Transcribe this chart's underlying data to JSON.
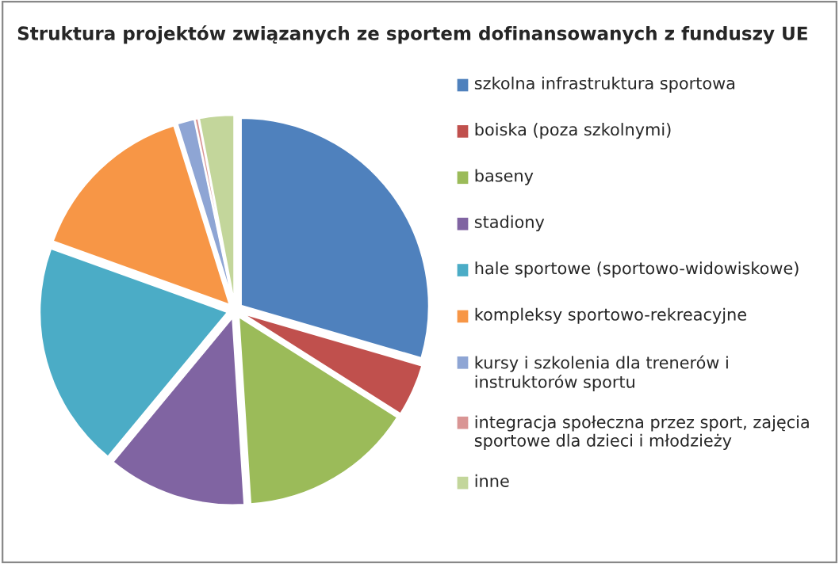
{
  "chart_data": {
    "type": "pie",
    "title": "Struktura projektów związanych ze sportem dofinansowanych z funduszy UE",
    "categories": [
      "szkolna infrastruktura sportowa",
      "boiska (poza szkolnymi)",
      "baseny",
      "stadiony",
      "hale sportowe (sportowo-widowiskowe)",
      "kompleksy sportowo-rekreacyjne",
      "kursy i szkolenia dla trenerów i instruktorów sportu",
      "integracja społeczna przez sport, zajęcia sportowe dla dzieci i młodzieży",
      "inne"
    ],
    "values": [
      29.5,
      4.5,
      15,
      12,
      19.5,
      14.7,
      1.5,
      0.3,
      3
    ],
    "colors": [
      "#4f81bd",
      "#c0504d",
      "#9bbb59",
      "#8064a2",
      "#4bacc6",
      "#f79646",
      "#8ea5d4",
      "#d99594",
      "#c3d69b"
    ],
    "legend": "right"
  }
}
